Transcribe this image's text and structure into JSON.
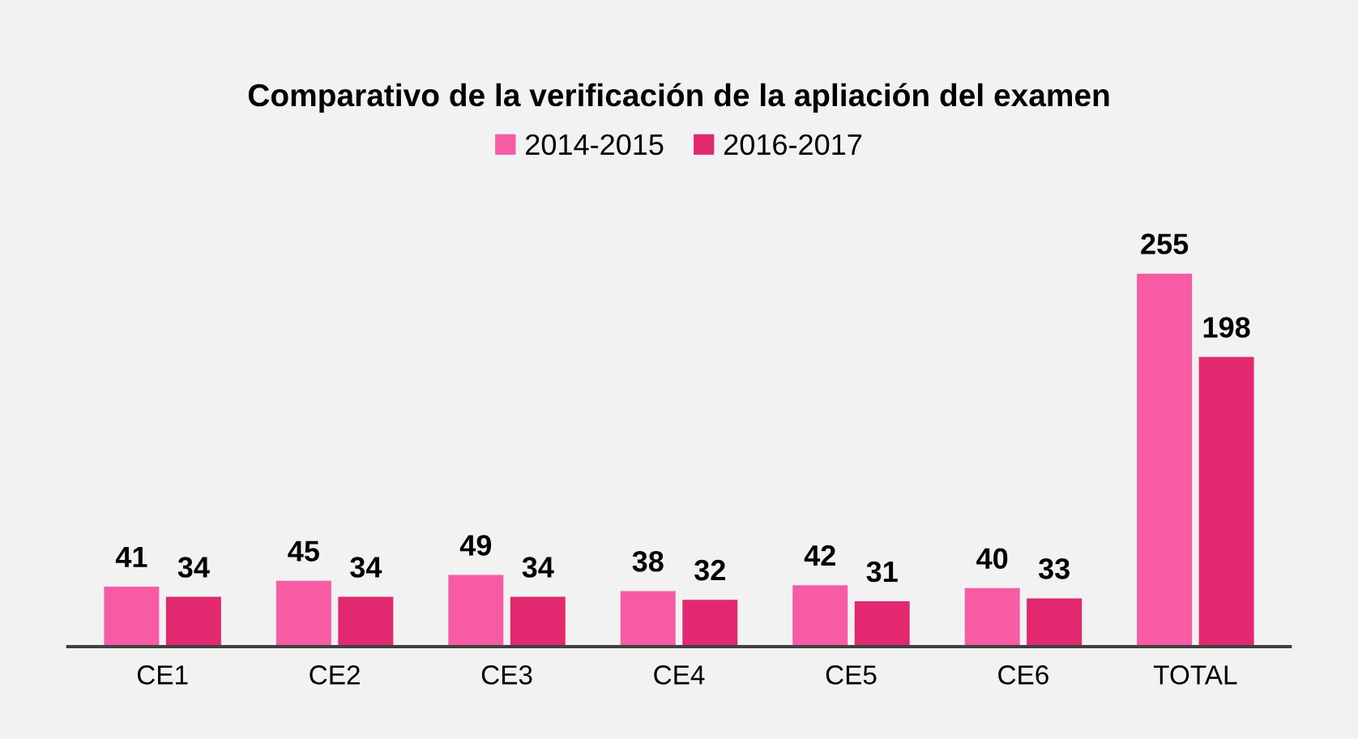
{
  "chart_data": {
    "type": "bar",
    "title": "Comparativo de la verificación de la apliación del examen",
    "categories": [
      "CE1",
      "CE2",
      "CE3",
      "CE4",
      "CE5",
      "CE6",
      "TOTAL"
    ],
    "series": [
      {
        "name": "2014-2015",
        "color": "#f75ba4",
        "values": [
          41,
          45,
          49,
          38,
          42,
          40,
          255
        ]
      },
      {
        "name": "2016-2017",
        "color": "#e2296f",
        "values": [
          34,
          34,
          34,
          32,
          31,
          33,
          198
        ]
      }
    ],
    "data_labels": true,
    "legend": "top"
  }
}
